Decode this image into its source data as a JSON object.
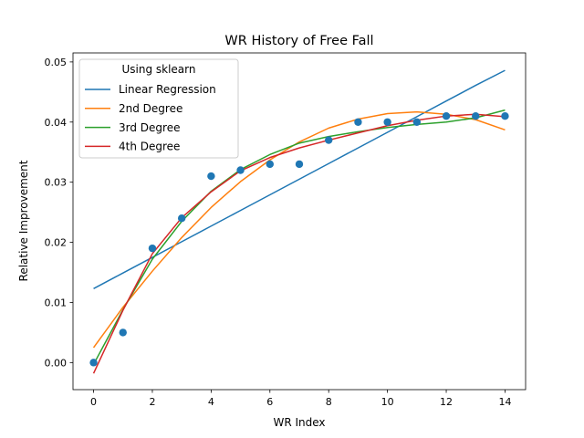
{
  "chart_data": {
    "type": "line",
    "title": "WR History of Free Fall",
    "xlabel": "WR Index",
    "ylabel": "Relative Improvement",
    "xlim": [
      -0.7,
      14.7
    ],
    "ylim": [
      -0.0045,
      0.0515
    ],
    "xticks": [
      0,
      2,
      4,
      6,
      8,
      10,
      12,
      14
    ],
    "yticks": [
      0.0,
      0.01,
      0.02,
      0.03,
      0.04,
      0.05
    ],
    "ytick_labels": [
      "0.00",
      "0.01",
      "0.02",
      "0.03",
      "0.04",
      "0.05"
    ],
    "grid": false,
    "legend": {
      "title": "Using sklearn",
      "position": "upper-left"
    },
    "scatter": {
      "color": "#1f77b4",
      "x": [
        0,
        1,
        2,
        3,
        4,
        5,
        6,
        7,
        8,
        9,
        10,
        11,
        12,
        13,
        14
      ],
      "y": [
        0.0,
        0.005,
        0.019,
        0.024,
        0.031,
        0.032,
        0.033,
        0.033,
        0.037,
        0.04,
        0.04,
        0.04,
        0.041,
        0.041,
        0.041
      ]
    },
    "x": [
      0,
      1,
      2,
      3,
      4,
      5,
      6,
      7,
      8,
      9,
      10,
      11,
      12,
      13,
      14
    ],
    "series": [
      {
        "name": "Linear Regression",
        "color": "#1f77b4",
        "values": [
          0.0123,
          0.0149,
          0.0175,
          0.0201,
          0.0227,
          0.0253,
          0.0279,
          0.0305,
          0.0331,
          0.0357,
          0.0383,
          0.0409,
          0.0435,
          0.0461,
          0.0486
        ]
      },
      {
        "name": "2nd Degree",
        "color": "#ff7f0e",
        "values": [
          0.0025,
          0.0092,
          0.0152,
          0.0208,
          0.0258,
          0.0301,
          0.0337,
          0.0367,
          0.039,
          0.0405,
          0.0414,
          0.0417,
          0.0413,
          0.0404,
          0.0387
        ]
      },
      {
        "name": "3rd Degree",
        "color": "#2ca02c",
        "values": [
          -0.0003,
          0.0088,
          0.0172,
          0.0235,
          0.0285,
          0.0321,
          0.0346,
          0.0365,
          0.0376,
          0.0384,
          0.0391,
          0.0396,
          0.04,
          0.0407,
          0.042
        ]
      },
      {
        "name": "4th Degree",
        "color": "#d62728",
        "values": [
          -0.0018,
          0.0087,
          0.0181,
          0.0241,
          0.0284,
          0.0319,
          0.0341,
          0.0357,
          0.037,
          0.0382,
          0.0394,
          0.0403,
          0.041,
          0.0413,
          0.0409
        ]
      }
    ]
  }
}
